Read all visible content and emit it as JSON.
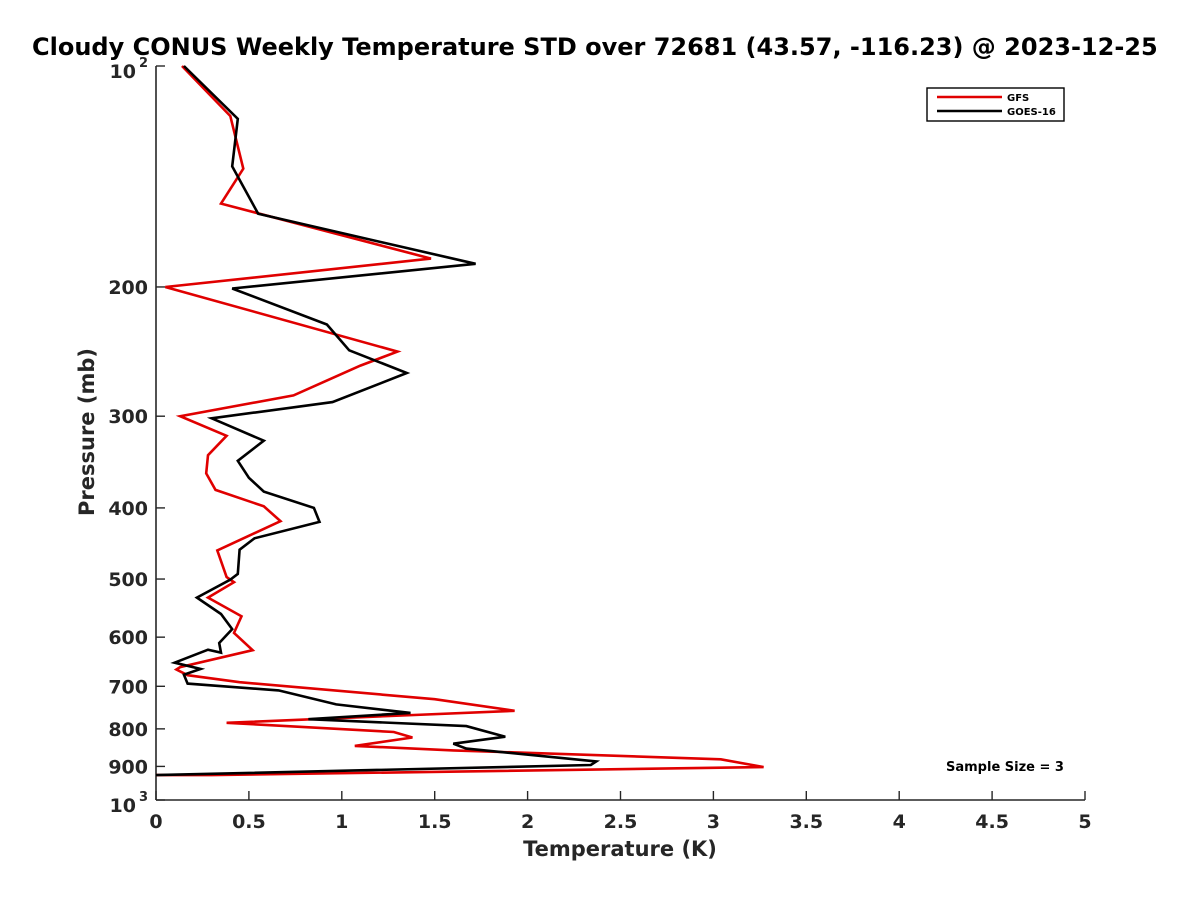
{
  "chart_data": {
    "type": "line",
    "title": "Cloudy CONUS Weekly Temperature STD over 72681 (43.57, -116.23) @ 2023-12-25",
    "xlabel": "Temperature (K)",
    "ylabel": "Pressure (mb)",
    "xlim": [
      0,
      5
    ],
    "ylim": [
      1000,
      100
    ],
    "y_scale": "log",
    "y_reversed": true,
    "grid": false,
    "legend_position": "top-right",
    "x_ticks": [
      0,
      0.5,
      1,
      1.5,
      2,
      2.5,
      3,
      3.5,
      4,
      4.5,
      5
    ],
    "x_tick_labels": [
      "0",
      "0.5",
      "1",
      "1.5",
      "2",
      "2.5",
      "3",
      "3.5",
      "4",
      "4.5",
      "5"
    ],
    "y_ticks": [
      100,
      200,
      300,
      400,
      500,
      600,
      700,
      800,
      900,
      1000
    ],
    "y_tick_labels": [
      {
        "base": "10",
        "exp": "2"
      },
      {
        "base": "200",
        "exp": ""
      },
      {
        "base": "300",
        "exp": ""
      },
      {
        "base": "400",
        "exp": ""
      },
      {
        "base": "500",
        "exp": ""
      },
      {
        "base": "600",
        "exp": ""
      },
      {
        "base": "700",
        "exp": ""
      },
      {
        "base": "800",
        "exp": ""
      },
      {
        "base": "900",
        "exp": ""
      },
      {
        "base": "10",
        "exp": "3"
      }
    ],
    "annotation": "Sample Size = 3",
    "series": [
      {
        "name": "GFS",
        "color": "#e00000",
        "points": [
          [
            0.14,
            100
          ],
          [
            0.4,
            117
          ],
          [
            0.47,
            138
          ],
          [
            0.35,
            154
          ],
          [
            1.48,
            183
          ],
          [
            0.05,
            200
          ],
          [
            1.3,
            245
          ],
          [
            1.1,
            256
          ],
          [
            0.74,
            281
          ],
          [
            0.13,
            300
          ],
          [
            0.38,
            319
          ],
          [
            0.28,
            339
          ],
          [
            0.27,
            359
          ],
          [
            0.32,
            378
          ],
          [
            0.58,
            398
          ],
          [
            0.67,
            417
          ],
          [
            0.33,
            457
          ],
          [
            0.38,
            497
          ],
          [
            0.42,
            505
          ],
          [
            0.28,
            530
          ],
          [
            0.46,
            562
          ],
          [
            0.42,
            592
          ],
          [
            0.52,
            625
          ],
          [
            0.13,
            659
          ],
          [
            0.11,
            664
          ],
          [
            0.17,
            676
          ],
          [
            0.45,
            691
          ],
          [
            1.5,
            729
          ],
          [
            1.93,
            756
          ],
          [
            0.38,
            785
          ],
          [
            1.28,
            808
          ],
          [
            1.38,
            822
          ],
          [
            1.07,
            844
          ],
          [
            1.6,
            856
          ],
          [
            3.04,
            880
          ],
          [
            3.27,
            902
          ],
          [
            0.3,
            925
          ],
          [
            0.0,
            925
          ]
        ]
      },
      {
        "name": "GOES-16",
        "color": "#000000",
        "points": [
          [
            0.15,
            100
          ],
          [
            0.44,
            118
          ],
          [
            0.41,
            137
          ],
          [
            0.55,
            159
          ],
          [
            1.72,
            186
          ],
          [
            0.41,
            201
          ],
          [
            0.92,
            225
          ],
          [
            1.04,
            244
          ],
          [
            1.35,
            262
          ],
          [
            0.95,
            287
          ],
          [
            0.3,
            302
          ],
          [
            0.58,
            324
          ],
          [
            0.44,
            345
          ],
          [
            0.5,
            364
          ],
          [
            0.58,
            380
          ],
          [
            0.85,
            400
          ],
          [
            0.88,
            418
          ],
          [
            0.53,
            440
          ],
          [
            0.45,
            456
          ],
          [
            0.44,
            492
          ],
          [
            0.4,
            501
          ],
          [
            0.22,
            530
          ],
          [
            0.35,
            558
          ],
          [
            0.41,
            585
          ],
          [
            0.34,
            611
          ],
          [
            0.35,
            630
          ],
          [
            0.28,
            624
          ],
          [
            0.1,
            650
          ],
          [
            0.24,
            663
          ],
          [
            0.15,
            675
          ],
          [
            0.17,
            694
          ],
          [
            0.66,
            709
          ],
          [
            0.97,
            741
          ],
          [
            1.37,
            761
          ],
          [
            0.82,
            776
          ],
          [
            1.67,
            793
          ],
          [
            1.88,
            820
          ],
          [
            1.6,
            838
          ],
          [
            1.67,
            851
          ],
          [
            2.37,
            886
          ],
          [
            2.34,
            896
          ],
          [
            0.0,
            925
          ]
        ]
      }
    ]
  }
}
